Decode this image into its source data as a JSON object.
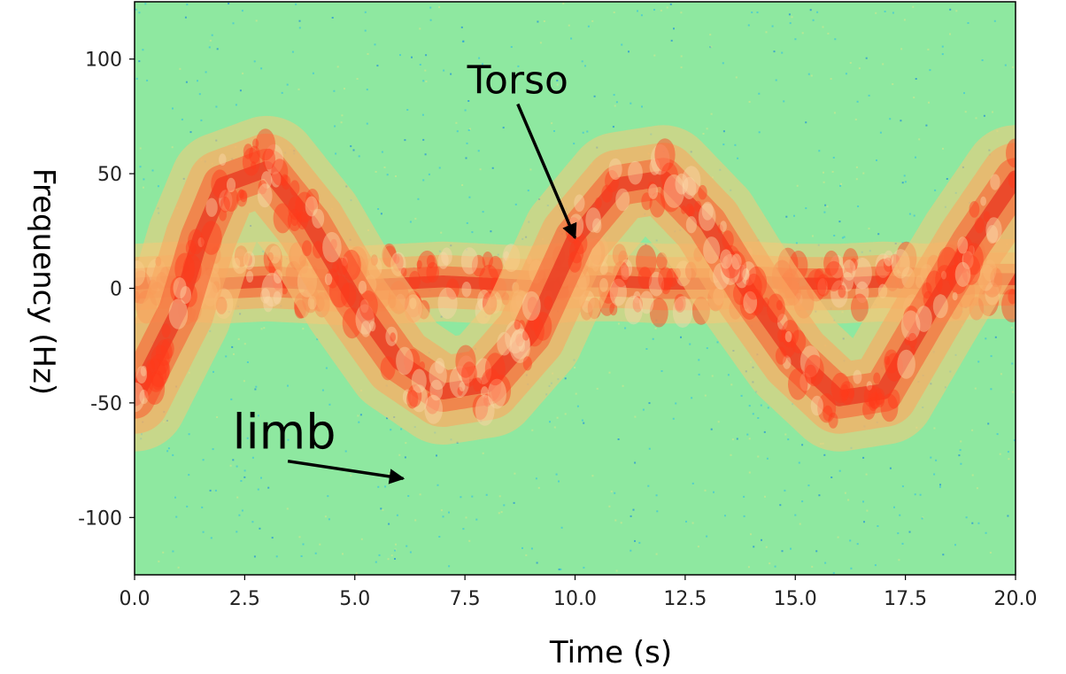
{
  "chart_data": {
    "type": "heatmap",
    "title": "",
    "xlabel": "Time (s)",
    "ylabel": "Frequency (Hz)",
    "xlim": [
      0,
      20
    ],
    "ylim": [
      -125,
      125
    ],
    "x_ticks": [
      0,
      2.5,
      5,
      7.5,
      10,
      12.5,
      15,
      17.5,
      20
    ],
    "x_tick_labels": [
      "0.0",
      "2.5",
      "5.0",
      "7.5",
      "10.0",
      "12.5",
      "15.0",
      "17.5",
      "20.0"
    ],
    "y_ticks": [
      100,
      50,
      0,
      -50,
      -100
    ],
    "y_tick_labels": [
      "100",
      "50",
      "0",
      "-50",
      "-100"
    ],
    "colormap": "jet",
    "background_color": "#8ee8a0",
    "grid": false,
    "annotations": [
      {
        "text": "Torso",
        "xy": [
          10.0,
          22
        ],
        "xytext": [
          8.7,
          85
        ]
      },
      {
        "text": "limb",
        "xy": [
          6.1,
          -83
        ],
        "xytext": [
          3.4,
          -70
        ]
      }
    ],
    "series": [
      {
        "name": "torso",
        "x": [
          0,
          1,
          2,
          3,
          4,
          5,
          6,
          7,
          8,
          9,
          10,
          11,
          12,
          13,
          14,
          15,
          16,
          17,
          18,
          19,
          20
        ],
        "y": [
          2,
          3,
          2,
          3,
          2,
          1,
          2,
          3,
          2,
          1,
          3,
          3,
          2,
          2,
          3,
          2,
          2,
          3,
          2,
          4,
          4
        ]
      },
      {
        "name": "limb",
        "x": [
          0,
          1,
          1.5,
          2,
          3,
          4,
          5,
          6,
          7,
          8,
          9,
          10,
          11,
          12,
          13,
          14,
          15,
          16,
          17,
          18,
          19,
          20
        ],
        "y": [
          -48,
          -10,
          22,
          45,
          52,
          28,
          -5,
          -32,
          -45,
          -42,
          -20,
          22,
          45,
          48,
          28,
          -3,
          -30,
          -48,
          -45,
          -12,
          20,
          48
        ]
      }
    ]
  }
}
